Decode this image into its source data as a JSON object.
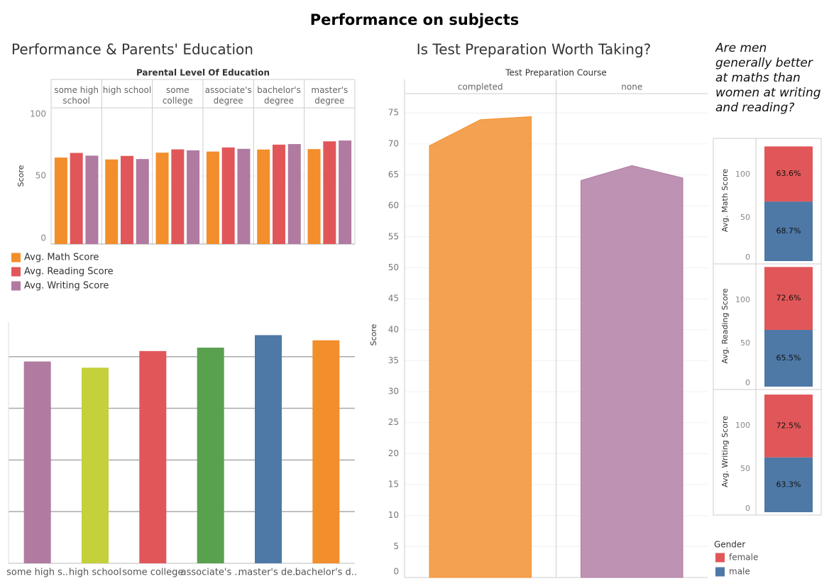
{
  "title": "Performance on subjects",
  "chart_data": [
    {
      "type": "bar",
      "title": "Performance & Parents' Education",
      "header": "Parental Level Of Education",
      "ylabel": "Score",
      "categories": [
        "some high school",
        "high school",
        "some college",
        "associate's degree",
        "bachelor's degree",
        "master's degree"
      ],
      "series": [
        {
          "name": "Avg. Math Score",
          "color": "#f28e2b",
          "values": [
            63.5,
            62.1,
            67.1,
            67.9,
            69.4,
            69.7
          ]
        },
        {
          "name": "Avg. Reading Score",
          "color": "#e15759",
          "values": [
            66.9,
            64.7,
            69.5,
            70.9,
            73.0,
            75.4
          ]
        },
        {
          "name": "Avg. Writing Score",
          "color": "#b07aa1",
          "values": [
            64.9,
            62.4,
            68.8,
            69.9,
            73.4,
            76.0
          ]
        }
      ],
      "ylim": [
        0,
        100
      ],
      "yticks": [
        0,
        50,
        100
      ],
      "grid": true
    },
    {
      "type": "bar",
      "categories": [
        "some high s..",
        "high school",
        "some college",
        "associate's ..",
        "master's de..",
        "bachelor's d.."
      ],
      "values": [
        195.3,
        189.3,
        205.4,
        208.7,
        220.8,
        215.8
      ],
      "colors": [
        "#b07aa1",
        "#c5d03a",
        "#e15759",
        "#59a14f",
        "#4e79a7",
        "#f28e2b"
      ],
      "ylim": [
        0,
        230
      ],
      "yticks": [
        50,
        100,
        150,
        200
      ],
      "tick_labels": false,
      "grid": true
    },
    {
      "type": "area",
      "title": "Is Test Preparation Worth Taking?",
      "header": "Test Preparation Course",
      "ylabel": "Score",
      "categories": [
        null,
        null,
        null
      ],
      "series": [
        {
          "name": "completed",
          "color": "#f28e2b",
          "values": [
            69.7,
            73.9,
            74.4
          ]
        },
        {
          "name": "none",
          "color": "#b07aa1",
          "values": [
            64.1,
            66.5,
            64.5
          ]
        }
      ],
      "ylim": [
        0,
        78
      ],
      "yticks": [
        0,
        5,
        10,
        15,
        20,
        25,
        30,
        35,
        40,
        45,
        50,
        55,
        60,
        65,
        70,
        75
      ],
      "grid": true
    },
    {
      "type": "stacked_bar",
      "title": "Are men generally better at maths than women at writing and reading?",
      "categories": [
        "Avg. Math Score",
        "Avg. Reading Score",
        "Avg. Writing Score"
      ],
      "series": [
        {
          "name": "female",
          "color": "#e15759",
          "values": [
            63.6,
            72.6,
            72.5
          ],
          "value_labels": [
            "63.6%",
            "72.6%",
            "72.5%"
          ]
        },
        {
          "name": "male",
          "color": "#4e79a7",
          "values": [
            68.7,
            65.5,
            63.3
          ],
          "value_labels": [
            "68.7%",
            "65.5%",
            "63.3%"
          ]
        }
      ],
      "legend_title": "Gender",
      "ylim": [
        0,
        140
      ],
      "yticks": [
        0,
        50,
        100
      ],
      "grid": false
    }
  ]
}
